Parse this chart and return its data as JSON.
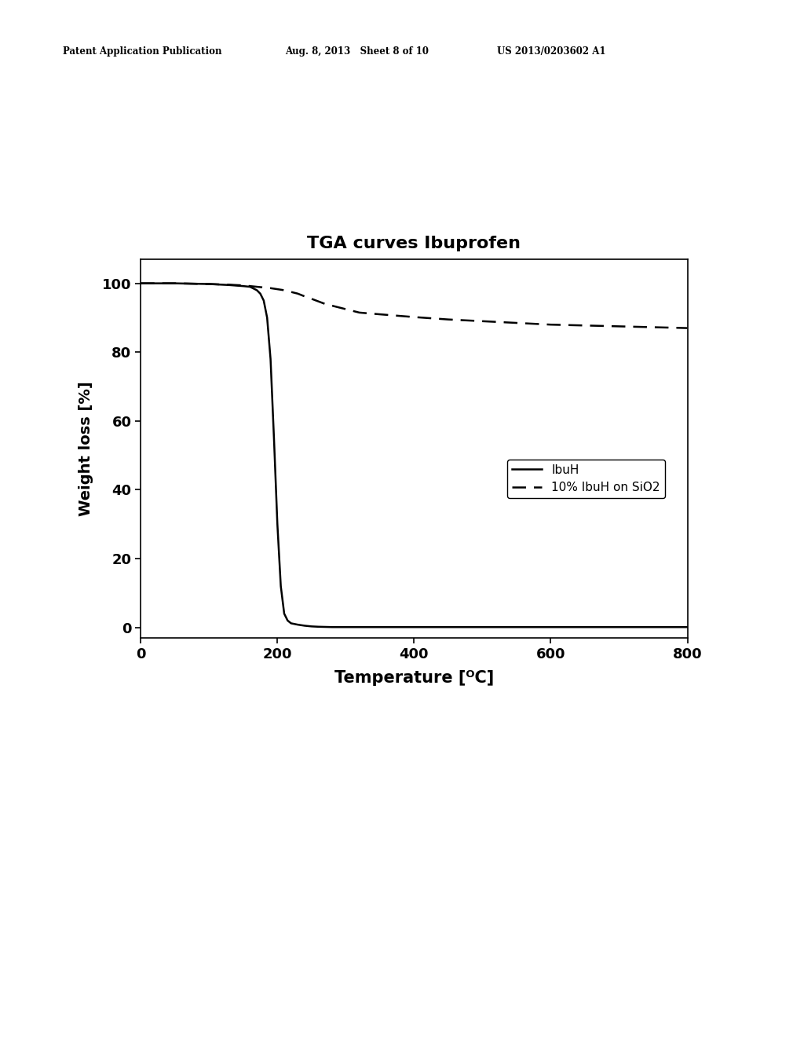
{
  "title": "TGA curves Ibuprofen",
  "xlabel": "Temperature [ᴼC]",
  "ylabel": "Weight loss [%]",
  "xlim": [
    0,
    800
  ],
  "ylim": [
    -3,
    107
  ],
  "xticks": [
    0,
    200,
    400,
    600,
    800
  ],
  "yticks": [
    0,
    20,
    40,
    60,
    80,
    100
  ],
  "line1_label": "IbuH",
  "line2_label": "10% IbuH on SiO2",
  "background_color": "#ffffff",
  "header_left": "Patent Application Publication",
  "header_mid": "Aug. 8, 2013   Sheet 8 of 10",
  "header_right": "US 2013/0203602 A1",
  "ibuh_x": [
    0,
    50,
    100,
    130,
    150,
    160,
    170,
    175,
    180,
    185,
    190,
    195,
    200,
    205,
    210,
    215,
    220,
    230,
    240,
    250,
    260,
    270,
    280,
    300,
    400,
    500,
    600,
    700,
    800
  ],
  "ibuh_y": [
    100,
    100,
    99.8,
    99.5,
    99.2,
    99,
    98,
    97,
    95,
    90,
    78,
    55,
    30,
    12,
    4,
    2,
    1.2,
    0.8,
    0.5,
    0.3,
    0.2,
    0.15,
    0.1,
    0.1,
    0.1,
    0.1,
    0.1,
    0.1,
    0.1
  ],
  "sio2_x": [
    0,
    50,
    100,
    130,
    150,
    160,
    170,
    180,
    190,
    200,
    210,
    220,
    230,
    240,
    250,
    270,
    300,
    320,
    350,
    400,
    450,
    500,
    550,
    600,
    700,
    800
  ],
  "sio2_y": [
    100,
    100,
    99.8,
    99.6,
    99.4,
    99.2,
    99,
    98.8,
    98.6,
    98.3,
    98,
    97.5,
    97,
    96.2,
    95.5,
    94,
    92.5,
    91.5,
    91,
    90.2,
    89.5,
    89,
    88.5,
    88,
    87.5,
    87
  ]
}
